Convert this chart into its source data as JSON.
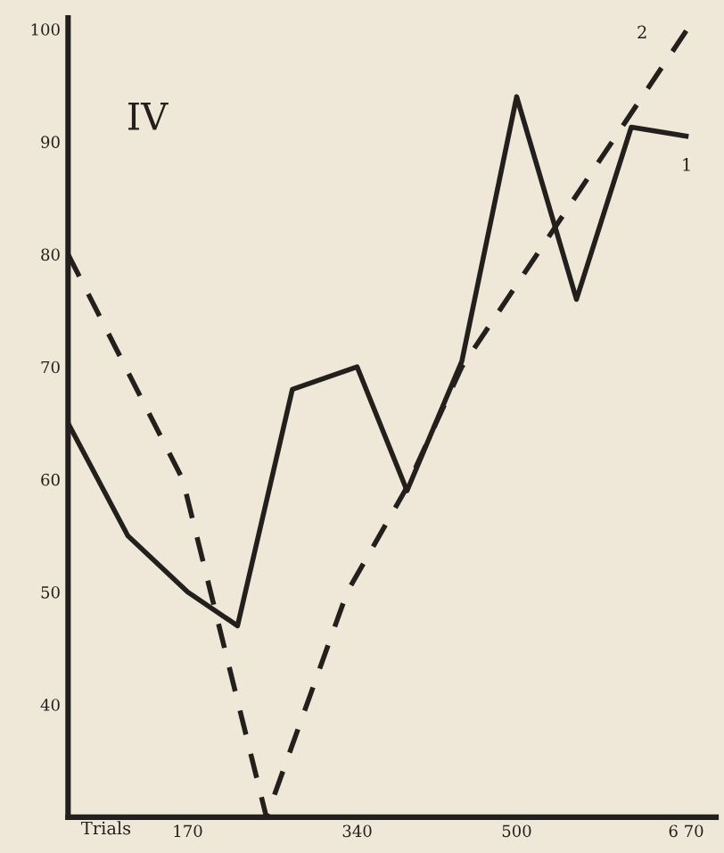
{
  "chart_data": {
    "type": "line",
    "xlabel": "Trials",
    "annotations": [
      "IV"
    ],
    "xlim": [
      50,
      700
    ],
    "xticks": [
      170,
      340,
      500,
      {
        "value": 670,
        "label": "6 70"
      }
    ],
    "ylim": [
      30,
      101
    ],
    "yticks": [
      40,
      50,
      60,
      70,
      80,
      90,
      100
    ],
    "grid": false,
    "marker": "none",
    "series": [
      {
        "name": "1",
        "color": "#231f1c",
        "line_style": "solid",
        "x": [
          50,
          110,
          170,
          220,
          275,
          340,
          390,
          445,
          500,
          560,
          615,
          670
        ],
        "values": [
          65,
          55,
          50,
          47,
          68,
          70,
          59,
          70.5,
          94,
          76,
          91.3,
          90.5
        ]
      },
      {
        "name": "2",
        "color": "#231f1c",
        "line_style": "dashed",
        "x": [
          50,
          165,
          249,
          330,
          388,
          445,
          675
        ],
        "values": [
          80,
          60,
          30,
          50,
          59,
          70,
          100.5
        ]
      }
    ]
  }
}
